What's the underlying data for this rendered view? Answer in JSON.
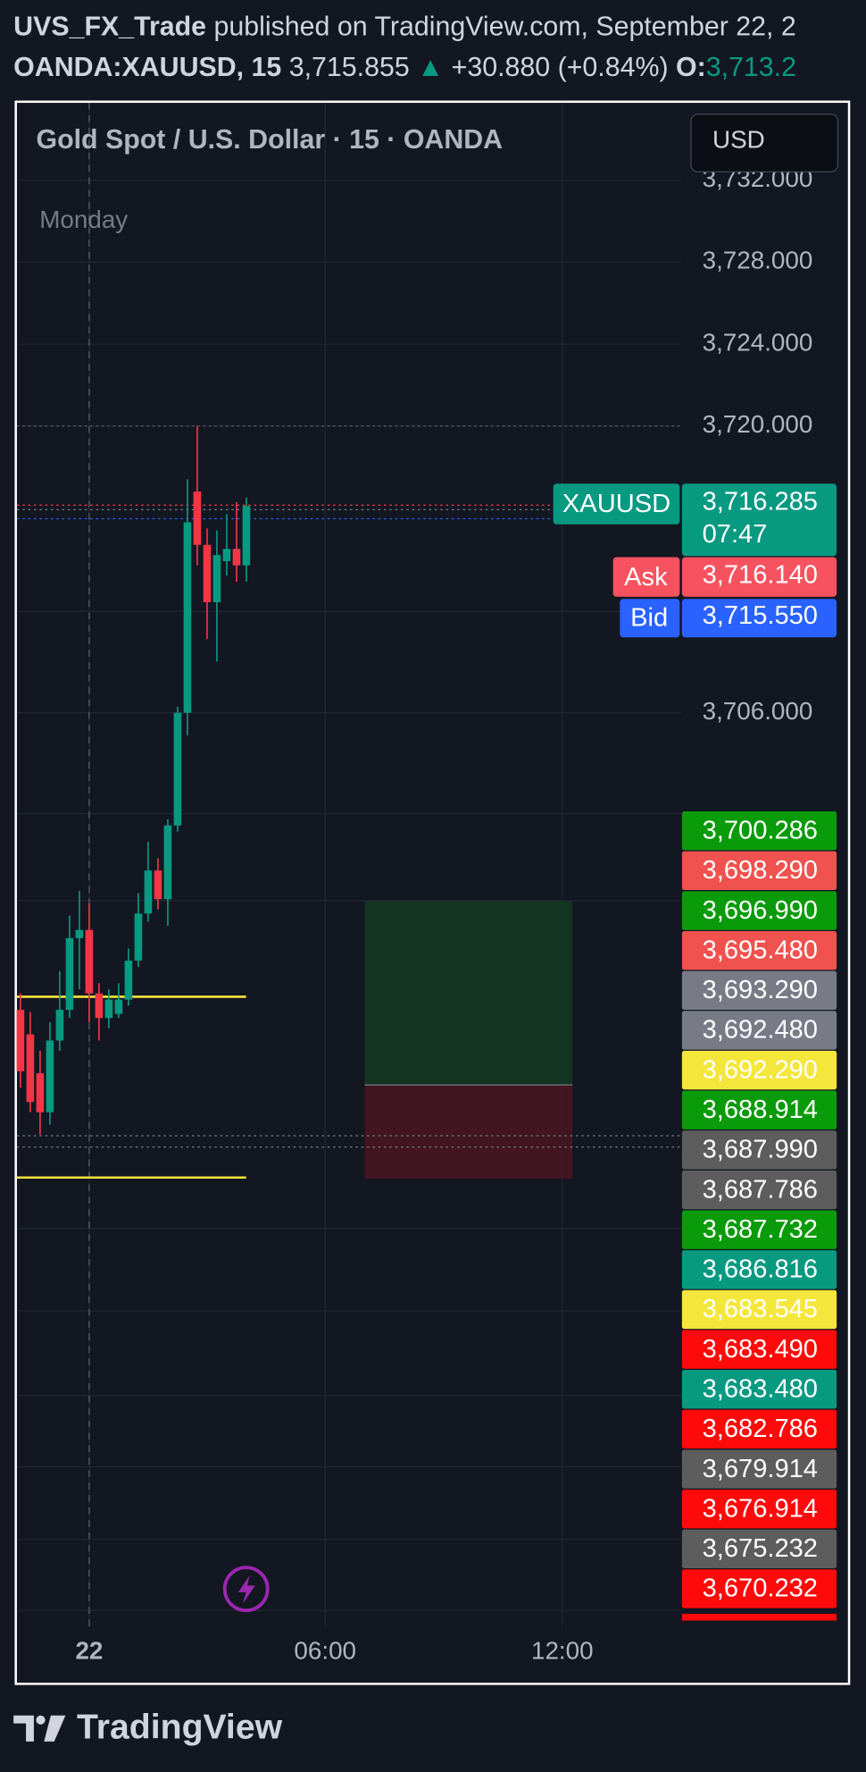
{
  "header": {
    "author": "UVS_FX_Trade",
    "published": "published on TradingView.com, September 22, 2",
    "symbol": "OANDA:XAUUSD, 15",
    "last": "3,715.855",
    "change": "+30.880 (+0.84%)",
    "open_label": "O:",
    "open": "3,713.2"
  },
  "chart": {
    "title": "Gold Spot / U.S. Dollar · 15 · OANDA",
    "session": "Monday",
    "currency": "USD",
    "price_axis": [
      {
        "value": 3732,
        "label": "3,732.000"
      },
      {
        "value": 3728,
        "label": "3,728.000"
      },
      {
        "value": 3724,
        "label": "3,724.000"
      },
      {
        "value": 3720,
        "label": "3,720.000"
      },
      {
        "value": 3706,
        "label": "3,706.000"
      }
    ],
    "time_axis": [
      "22",
      "06:00",
      "12:00"
    ],
    "symbol_tag": {
      "name": "XAUUSD",
      "price": "3,716.285",
      "countdown": "07:47"
    },
    "ask": {
      "name": "Ask",
      "price": "3,716.140"
    },
    "bid": {
      "name": "Bid",
      "price": "3,715.550"
    },
    "levels": [
      {
        "label": "3,700.286",
        "color": "#0a9b0a"
      },
      {
        "label": "3,698.290",
        "color": "#f0524f"
      },
      {
        "label": "3,696.990",
        "color": "#0a9b0a"
      },
      {
        "label": "3,695.480",
        "color": "#f0524f"
      },
      {
        "label": "3,693.290",
        "color": "#787b86"
      },
      {
        "label": "3,692.480",
        "color": "#787b86"
      },
      {
        "label": "3,692.290",
        "color": "#f5e63c"
      },
      {
        "label": "3,688.914",
        "color": "#0a9b0a"
      },
      {
        "label": "3,687.990",
        "color": "#5d5d5d"
      },
      {
        "label": "3,687.786",
        "color": "#5d5d5d"
      },
      {
        "label": "3,687.732",
        "color": "#0a9b0a"
      },
      {
        "label": "3,686.816",
        "color": "#089981"
      },
      {
        "label": "3,683.545",
        "color": "#f5e63c"
      },
      {
        "label": "3,683.490",
        "color": "#ff0a0a"
      },
      {
        "label": "3,683.480",
        "color": "#089981"
      },
      {
        "label": "3,682.786",
        "color": "#ff0a0a"
      },
      {
        "label": "3,679.914",
        "color": "#5d5d5d"
      },
      {
        "label": "3,676.914",
        "color": "#ff0a0a"
      },
      {
        "label": "3,675.232",
        "color": "#5d5d5d"
      },
      {
        "label": "3,670.232",
        "color": "#ff0a0a"
      }
    ],
    "up_color": "#089981",
    "down_color": "#f23645",
    "candles": [
      {
        "open": 3691.5,
        "high": 3692.3,
        "low": 3687.7,
        "close": 3688.5
      },
      {
        "open": 3690.3,
        "high": 3691.4,
        "low": 3686.5,
        "close": 3687.0
      },
      {
        "open": 3688.4,
        "high": 3689.5,
        "low": 3685.4,
        "close": 3686.5
      },
      {
        "open": 3686.5,
        "high": 3690.9,
        "low": 3685.9,
        "close": 3690.0
      },
      {
        "open": 3690.0,
        "high": 3693.4,
        "low": 3689.5,
        "close": 3691.5
      },
      {
        "open": 3691.5,
        "high": 3696.1,
        "low": 3691.1,
        "close": 3695.0
      },
      {
        "open": 3695.0,
        "high": 3697.3,
        "low": 3692.5,
        "close": 3695.4
      },
      {
        "open": 3695.4,
        "high": 3696.7,
        "low": 3690.9,
        "close": 3692.3
      },
      {
        "open": 3692.3,
        "high": 3692.8,
        "low": 3690.0,
        "close": 3691.1
      },
      {
        "open": 3691.1,
        "high": 3692.5,
        "low": 3690.6,
        "close": 3692.0
      },
      {
        "open": 3691.3,
        "high": 3692.8,
        "low": 3691.1,
        "close": 3692.0
      },
      {
        "open": 3692.0,
        "high": 3694.5,
        "low": 3691.7,
        "close": 3693.9
      },
      {
        "open": 3693.9,
        "high": 3697.2,
        "low": 3693.6,
        "close": 3696.2
      },
      {
        "open": 3696.2,
        "high": 3699.7,
        "low": 3695.8,
        "close": 3698.3
      },
      {
        "open": 3698.3,
        "high": 3698.9,
        "low": 3696.4,
        "close": 3696.9
      },
      {
        "open": 3696.9,
        "high": 3700.8,
        "low": 3695.6,
        "close": 3700.5
      },
      {
        "open": 3700.5,
        "high": 3706.3,
        "low": 3700.2,
        "close": 3706.0
      },
      {
        "open": 3706.0,
        "high": 3717.4,
        "low": 3704.9,
        "close": 3715.3
      },
      {
        "open": 3716.8,
        "high": 3720.0,
        "low": 3713.2,
        "close": 3714.2
      },
      {
        "open": 3714.2,
        "high": 3715.0,
        "low": 3709.6,
        "close": 3711.4
      },
      {
        "open": 3711.4,
        "high": 3714.9,
        "low": 3708.5,
        "close": 3713.7
      },
      {
        "open": 3713.4,
        "high": 3715.7,
        "low": 3712.7,
        "close": 3714.0
      },
      {
        "open": 3714.0,
        "high": 3716.3,
        "low": 3712.4,
        "close": 3713.2
      },
      {
        "open": 3713.2,
        "high": 3716.5,
        "low": 3712.4,
        "close": 3716.1
      }
    ]
  },
  "footer": {
    "brand": "TradingView"
  }
}
